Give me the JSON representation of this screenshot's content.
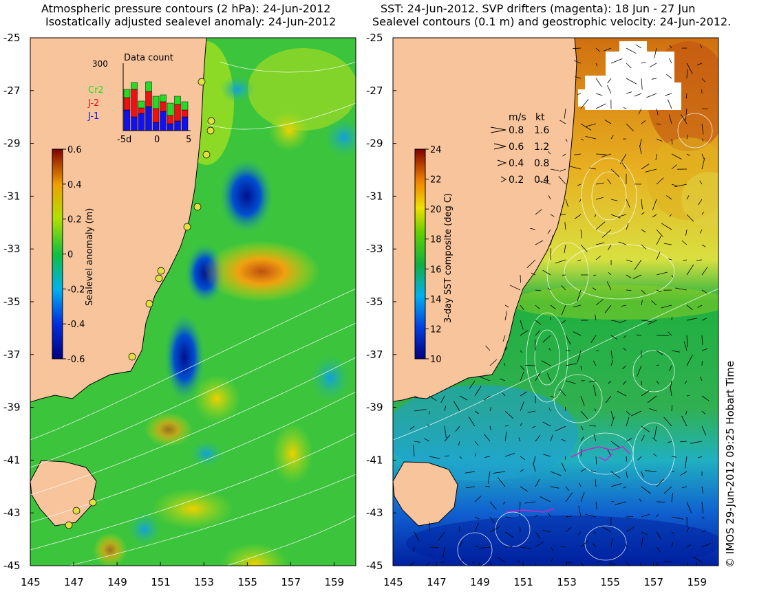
{
  "left_panel": {
    "title_line1": "Atmospheric pressure contours (2 hPa): 24-Jun-2012",
    "title_line2": "Isostatically adjusted sealevel anomaly: 24-Jun-2012",
    "colorbar": {
      "label": "Sealevel anomaly (m)",
      "ticks": [
        "0.6",
        "0.4",
        "0.2",
        "0",
        "-0.2",
        "-0.4",
        "-0.6"
      ],
      "range": [
        -0.6,
        0.6
      ]
    },
    "inset": {
      "title": "Data count",
      "ymax_label": "300",
      "xticks": [
        "-5d",
        "0",
        "5"
      ],
      "legend": [
        {
          "name": "Cr2",
          "color": "#22dd22"
        },
        {
          "name": "J-2",
          "color": "#ee1111"
        },
        {
          "name": "J-1",
          "color": "#1111ee"
        }
      ]
    }
  },
  "right_panel": {
    "title_line1": "SST: 24-Jun-2012. SVP drifters (magenta): 18 Jun - 27 Jun",
    "title_line2": "Sealevel contours (0.1 m) and geostrophic velocity: 24-Jun-2012.",
    "colorbar": {
      "label": "3-day SST composite (deg C)",
      "ticks": [
        "24",
        "22",
        "20",
        "18",
        "16",
        "14",
        "12",
        "10"
      ],
      "range": [
        10,
        24
      ]
    },
    "velocity_key": {
      "header_ms": "m/s",
      "header_kt": "kt",
      "rows": [
        {
          "ms": "0.8",
          "kt": "1.6"
        },
        {
          "ms": "0.6",
          "kt": "1.2"
        },
        {
          "ms": "0.4",
          "kt": "0.8"
        },
        {
          "ms": "0.2",
          "kt": "0.4"
        }
      ]
    }
  },
  "axes": {
    "lat_ticks": [
      "-25",
      "-27",
      "-29",
      "-31",
      "-33",
      "-35",
      "-37",
      "-39",
      "-41",
      "-43",
      "-45"
    ],
    "lon_ticks": [
      "145",
      "147",
      "149",
      "151",
      "153",
      "155",
      "157",
      "159"
    ],
    "lat_range": [
      -45,
      -25
    ],
    "lon_range": [
      145,
      160
    ]
  },
  "credit": "© IMOS 29-Jun-2012 09:25 Hobart Time",
  "colors": {
    "land": "#f8c49c",
    "ocean_left": "#3cc43c",
    "ocean_right_north": "#e0a020",
    "ocean_right_south": "#20b050"
  }
}
